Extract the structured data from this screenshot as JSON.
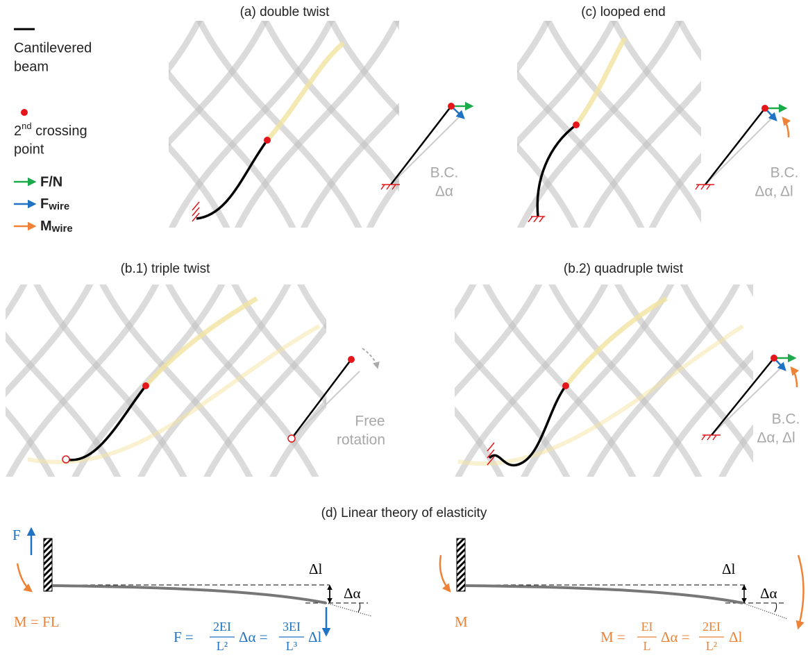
{
  "legend": {
    "beam": [
      "Cantilevered",
      "beam"
    ],
    "crossing": {
      "pre": "2",
      "sup": "nd",
      "post": " crossing",
      "line2": "point"
    },
    "force_n": "F/N",
    "f_wire": {
      "main": "F",
      "sub": "wire"
    },
    "m_wire": {
      "main": "M",
      "sub": "wire"
    }
  },
  "panels": [
    {
      "title": "(a) double twist",
      "bc": [
        "B.C.",
        "Δα"
      ]
    },
    {
      "title": "(c) looped end",
      "bc": [
        "B.C.",
        "Δα, Δl"
      ]
    },
    {
      "title": "(b.1) triple twist",
      "bc": [
        "Free",
        "rotation"
      ]
    },
    {
      "title": "(b.2)  quadruple twist",
      "bc": [
        "B.C.",
        "Δα, Δl"
      ]
    }
  ],
  "theory": {
    "title": "(d)  Linear theory of elasticity",
    "left": {
      "load": "F",
      "moment": "M = FL",
      "dl": "Δl",
      "da": "Δα",
      "formula": {
        "lhs": "F =",
        "f1n": "2EI",
        "f1d": "L²",
        "mid": "Δα =",
        "f2n": "3EI",
        "f2d": "L³",
        "end": "Δl"
      }
    },
    "right": {
      "moment": "M",
      "dl": "Δl",
      "da": "Δα",
      "formula": {
        "lhs": "M =",
        "f1n": "EI",
        "f1d": "L",
        "mid": "Δα =",
        "f2n": "2EI",
        "f2d": "L²",
        "end": "Δl"
      }
    }
  }
}
